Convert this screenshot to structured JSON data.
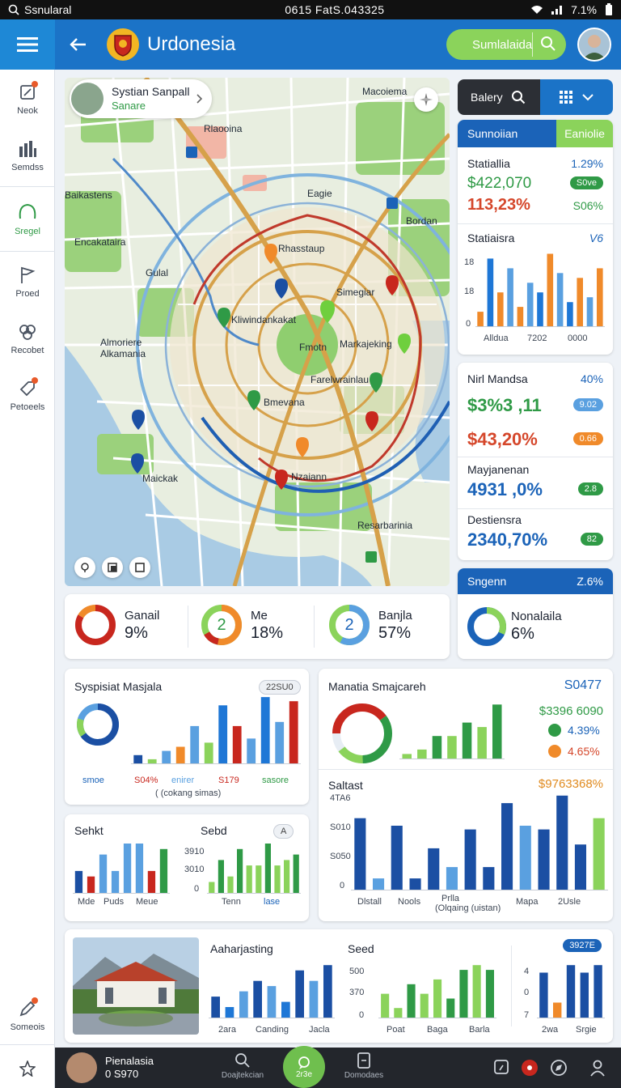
{
  "status_bar": {
    "app": "Ssnularal",
    "center": "0615 FatS.043325",
    "battery": "7.1%"
  },
  "sidebar": {
    "items": [
      {
        "label": "Neok",
        "icon": "edit-icon"
      },
      {
        "label": "Semdss",
        "icon": "building-icon"
      },
      {
        "label": "Sregel",
        "icon": "leaf-icon"
      },
      {
        "label": "Proed",
        "icon": "flag-icon"
      },
      {
        "label": "Recobet",
        "icon": "group-icon"
      },
      {
        "label": "Petoeels",
        "icon": "tag-icon"
      },
      {
        "label": "Someois",
        "icon": "edit-icon"
      }
    ]
  },
  "header": {
    "title": "Urdonesia",
    "search_label": "Sumlalaida"
  },
  "map": {
    "profile_name": "Systian Sanpall",
    "profile_sub": "Sanare",
    "labels": {
      "top_right": "Macoiema",
      "rlaooina": "Rlaooina",
      "baikastens": "Baikastens",
      "eagie": "Eagie",
      "bordan": "Bordan",
      "encakataira": "Encakataira",
      "gulal": "Gulal",
      "rhasstaup": "Rhasstaup",
      "simegiar": "Simegiar",
      "klwindan": "Kliwindankakat",
      "almoriere": "Almoriere",
      "alkamania": "Alkamania",
      "fmotn": "Fmotn",
      "markajeking": "Markajeking",
      "farelwrainlau": "Farelwrainlau",
      "bmevana": "Bmevana",
      "maickak": "Maickak",
      "nzaiann": "Nzaiann",
      "resarbarinia": "Resarbarinia"
    }
  },
  "right_panel": {
    "search_label": "Balery",
    "card1": {
      "header_left": "Sunnoiian",
      "header_right": "Eaniolie",
      "title": "Statiallia",
      "pct": "1.29%",
      "value1": "$422,070",
      "pill1": "S0ve",
      "value2": "113,23%",
      "pct2": "S06%",
      "chart_title": "Statiaisra",
      "chart_corner": "V6",
      "yticks": [
        "18",
        "18",
        "0"
      ],
      "xticks": [
        "Alldua",
        "7202",
        "0000"
      ]
    },
    "card2": {
      "title": "Nirl Mandsa",
      "pct": "40%",
      "value1": "$3%3 ,11",
      "pill1": "9.02",
      "value2": "$43,20%",
      "pill2": "0.66",
      "sub_title": "Mayjanenan",
      "value3": "4931 ,0%",
      "pill3": "2.8",
      "sub_title2": "Destiensra",
      "value4": "2340,70%",
      "pill4": "82"
    },
    "card3": {
      "header_left": "Sngenn",
      "header_right": "Z.6%",
      "label": "Nonalaila",
      "value": "6%"
    }
  },
  "donut_row": [
    {
      "label": "Ganail",
      "value": "9%",
      "center": ""
    },
    {
      "label": "Me",
      "value": "18%",
      "center": "2"
    },
    {
      "label": "Banjla",
      "value": "57%",
      "center": "2"
    }
  ],
  "panels": {
    "p1": {
      "title": "Syspisiat Masjala",
      "badge": "22SU0",
      "x1": "smoe",
      "x2": "S04%",
      "x3": "enirer",
      "x4": "S179",
      "x5": "sasore",
      "caption": "( (cokang simas)"
    },
    "p2": {
      "title": "Manatia Smajcareh",
      "value": "S0477",
      "legend_total": "$3396 6090",
      "legend1": "4.39%",
      "legend2": "4.65%"
    },
    "p3": {
      "title": "Sehkt",
      "title2": "Sebd",
      "badge": "A",
      "x1": "Mde",
      "x2": "Puds",
      "x3": "Meue",
      "y1": "3910",
      "y2": "3010",
      "y3": "0",
      "x4": "Tenn",
      "x5": "lase"
    },
    "p4": {
      "title": "Saltast",
      "value": "$9763368%",
      "y1": "4TA6",
      "y2": "S010",
      "y3": "S050",
      "y4": "0",
      "x1": "Dlstall",
      "x2": "Nools",
      "x3": "Prlla",
      "x4": "Mapa",
      "x5": "2Usle",
      "caption": "(Olqaing (uistan)"
    },
    "p5": {
      "title": "Aaharjasting",
      "title2": "Seed",
      "badge": "3927E",
      "x1": "2ara",
      "x2": "Canding",
      "x3": "Jacla",
      "y1": "500",
      "y2": "370",
      "y3": "0",
      "x4": "Poat",
      "x5": "Baga",
      "x6": "Barla",
      "y4": "4",
      "y5": "0",
      "y6": "7",
      "x7": "2wa",
      "x8": "Srgie"
    }
  },
  "bottom_bar": {
    "user_name": "Pienalasia",
    "user_sub": "0 S970",
    "item1": "Doajtekcian",
    "center": "2r3e",
    "item2": "Domodaes"
  },
  "chart_data": [
    {
      "type": "bar",
      "title": "Statiaisra",
      "series": [
        {
          "values": [
            3,
            14,
            7,
            12,
            4,
            9,
            7,
            15,
            11,
            5,
            10,
            6,
            12
          ]
        }
      ]
    },
    {
      "type": "bar",
      "title": "Syspisiat Masjala",
      "series": [
        {
          "values": [
            2,
            1,
            3,
            4,
            9,
            5,
            14,
            9,
            6,
            16,
            10,
            15
          ]
        }
      ]
    },
    {
      "type": "bar",
      "title": "Manatia Smajcareh",
      "series": [
        {
          "values": [
            1,
            2,
            5,
            5,
            8,
            7,
            12
          ]
        }
      ]
    },
    {
      "type": "bar",
      "title": "Saltast",
      "series": [
        {
          "values": [
            19,
            3,
            17,
            3,
            11,
            6,
            16,
            6,
            23,
            17,
            16,
            25,
            12,
            19
          ]
        }
      ]
    },
    {
      "type": "bar",
      "title": "Sehkt",
      "series": [
        {
          "values": [
            4,
            3,
            7,
            4,
            9,
            9,
            4,
            8
          ]
        }
      ]
    },
    {
      "type": "bar",
      "title": "Sebd",
      "series": [
        {
          "values": [
            2,
            6,
            3,
            8,
            5,
            5,
            9,
            5,
            6,
            7
          ]
        }
      ]
    },
    {
      "type": "bar",
      "title": "Aaharjasting",
      "series": [
        {
          "values": [
            4,
            2,
            5,
            7,
            6,
            3,
            9,
            7,
            10
          ]
        }
      ]
    },
    {
      "type": "bar",
      "title": "Seed",
      "series": [
        {
          "values": [
            5,
            2,
            7,
            5,
            8,
            4,
            10,
            11,
            10
          ]
        }
      ]
    },
    {
      "type": "bar",
      "values": [
        6,
        2,
        7,
        6,
        7
      ]
    }
  ]
}
